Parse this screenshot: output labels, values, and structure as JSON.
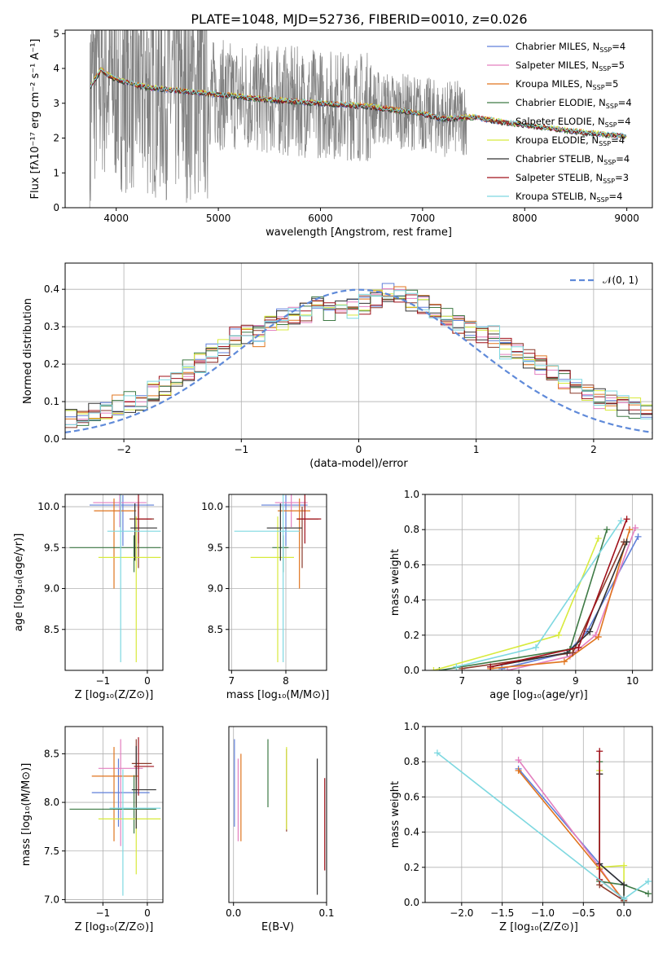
{
  "title": "PLATE=1048, MJD=52736, FIBERID=0010, z=0.026",
  "series": [
    {
      "name": "Chabrier MILES",
      "nssp": "4",
      "color": "#5f7fd9"
    },
    {
      "name": "Salpeter MILES",
      "nssp": "5",
      "color": "#e37fbf"
    },
    {
      "name": "Kroupa MILES",
      "nssp": "5",
      "color": "#e0751f"
    },
    {
      "name": "Chabrier ELODIE",
      "nssp": "4",
      "color": "#3e7a45"
    },
    {
      "name": "Salpeter ELODIE",
      "nssp": "4",
      "color": "#8a3a2a"
    },
    {
      "name": "Kroupa ELODIE",
      "nssp": "4",
      "color": "#d8ea3c"
    },
    {
      "name": "Chabrier STELIB",
      "nssp": "4",
      "color": "#333333"
    },
    {
      "name": "Salpeter STELIB",
      "nssp": "3",
      "color": "#a0101a"
    },
    {
      "name": "Kroupa STELIB",
      "nssp": "4",
      "color": "#7ed8e0"
    }
  ],
  "panel_labels": {
    "spectrum_x": "wavelength [Angstrom, rest frame]",
    "spectrum_y": "Flux [fλ10⁻¹⁷ erg cm⁻² s⁻¹ A⁻¹]",
    "resid_x": "(data-model)/error",
    "resid_y": "Normed distribution",
    "resid_legend": "𝒩(0, 1)",
    "age_y": "age  [log₁₀(age/yr)]",
    "z_x": "Z [log₁₀(Z/Z⊙)]",
    "mass_x": "mass [log₁₀(M/M⊙)]",
    "age_x": "age  [log₁₀(age/yr)]",
    "massweight_y": "mass weight",
    "mass_y": "mass [log₁₀(M/M⊙)]",
    "ebv_x": "E(B-V)"
  },
  "chart_data": [
    {
      "type": "line",
      "panel": "spectrum",
      "title": "PLATE=1048, MJD=52736, FIBERID=0010, z=0.026",
      "xlim": [
        3500,
        9250
      ],
      "ylim": [
        0,
        5.1
      ],
      "xticks": [
        4000,
        5000,
        6000,
        7000,
        8000,
        9000
      ],
      "yticks": [
        0,
        1,
        2,
        3,
        4,
        5
      ],
      "data_color": "#808080",
      "model_continuum": [
        [
          3750,
          3.5
        ],
        [
          3850,
          3.95
        ],
        [
          3950,
          3.75
        ],
        [
          4100,
          3.6
        ],
        [
          4300,
          3.45
        ],
        [
          4500,
          3.4
        ],
        [
          4800,
          3.3
        ],
        [
          5000,
          3.25
        ],
        [
          5500,
          3.1
        ],
        [
          6000,
          3.0
        ],
        [
          6500,
          2.9
        ],
        [
          7000,
          2.7
        ],
        [
          7200,
          2.55
        ],
        [
          7500,
          2.6
        ],
        [
          7800,
          2.45
        ],
        [
          8200,
          2.3
        ],
        [
          8600,
          2.15
        ],
        [
          9000,
          2.05
        ]
      ],
      "data_extent": [
        3740,
        7430
      ]
    },
    {
      "type": "bar",
      "panel": "residual histogram",
      "xlim": [
        -2.5,
        2.5
      ],
      "ylim": [
        0,
        0.47
      ],
      "xticks": [
        -2,
        -1,
        0,
        1,
        2
      ],
      "yticks": [
        0.0,
        0.1,
        0.2,
        0.3,
        0.4
      ],
      "bin_width": 0.1,
      "profile": [
        0.035,
        0.04,
        0.045,
        0.045,
        0.05,
        0.055,
        0.06,
        0.07,
        0.08,
        0.09,
        0.1,
        0.105,
        0.125,
        0.145,
        0.16,
        0.185,
        0.205,
        0.225,
        0.25,
        0.27,
        0.28,
        0.275,
        0.3,
        0.32,
        0.33,
        0.34,
        0.35,
        0.34,
        0.345,
        0.35,
        0.36,
        0.37,
        0.39,
        0.38,
        0.37,
        0.36,
        0.35,
        0.32,
        0.3,
        0.29,
        0.28,
        0.275,
        0.24,
        0.23,
        0.21,
        0.195,
        0.175,
        0.155,
        0.14,
        0.125,
        0.11,
        0.1,
        0.09,
        0.085,
        0.075,
        0.07,
        0.065,
        0.06,
        0.05,
        0.045
      ],
      "gaussian": {
        "mean": 0,
        "sigma": 1
      }
    },
    {
      "type": "scatter",
      "panel": "age vs Z",
      "xlim": [
        -1.85,
        0.35
      ],
      "ylim": [
        8.0,
        10.15
      ],
      "xticks": [
        -1,
        0
      ],
      "yticks": [
        8.5,
        9.0,
        9.5,
        10.0
      ],
      "points": [
        {
          "x": -0.55,
          "y": 10.02,
          "xerr": [
            0.75,
            0.7
          ],
          "yerr": [
            0.5,
            0.12
          ]
        },
        {
          "x": -0.62,
          "y": 10.05,
          "xerr": [
            0.6,
            0.6
          ],
          "yerr": [
            0.3,
            0.1
          ]
        },
        {
          "x": -0.75,
          "y": 9.95,
          "xerr": [
            0.45,
            0.5
          ],
          "yerr": [
            0.95,
            0.15
          ]
        },
        {
          "x": -0.3,
          "y": 9.5,
          "xerr": [
            1.45,
            0.6
          ],
          "yerr": [
            0.3,
            0.15
          ]
        },
        {
          "x": -0.2,
          "y": 9.85,
          "xerr": [
            0.2,
            0.35
          ],
          "yerr": [
            0.6,
            0.15
          ]
        },
        {
          "x": -0.25,
          "y": 9.38,
          "xerr": [
            0.85,
            0.55
          ],
          "yerr": [
            1.28,
            0.5
          ]
        },
        {
          "x": -0.28,
          "y": 9.74,
          "xerr": [
            0.1,
            0.5
          ],
          "yerr": [
            0.4,
            0.3
          ]
        },
        {
          "x": -0.2,
          "y": 9.85,
          "xerr": [
            0.05,
            0.3
          ],
          "yerr": [
            0.3,
            0.3
          ]
        },
        {
          "x": -0.6,
          "y": 9.7,
          "xerr": [
            0.3,
            0.9
          ],
          "yerr": [
            1.6,
            0.5
          ]
        }
      ]
    },
    {
      "type": "scatter",
      "panel": "age vs mass",
      "xlim": [
        6.95,
        8.75
      ],
      "ylim": [
        8.0,
        10.15
      ],
      "xticks": [
        7,
        8
      ],
      "yticks": [
        8.5,
        9.0,
        9.5,
        10.0
      ],
      "points": [
        {
          "x": 8.0,
          "y": 10.02,
          "xerr": [
            0.45,
            0.4
          ],
          "yerr": [
            0.5,
            0.12
          ]
        },
        {
          "x": 8.1,
          "y": 10.05,
          "xerr": [
            0.3,
            0.3
          ],
          "yerr": [
            0.3,
            0.1
          ]
        },
        {
          "x": 8.25,
          "y": 9.95,
          "xerr": [
            0.4,
            0.2
          ],
          "yerr": [
            0.95,
            0.15
          ]
        },
        {
          "x": 7.95,
          "y": 9.5,
          "xerr": [
            0.2,
            0.1
          ],
          "yerr": [
            0.3,
            0.15
          ]
        },
        {
          "x": 8.3,
          "y": 9.85,
          "xerr": [
            0.1,
            0.3
          ],
          "yerr": [
            0.6,
            0.15
          ]
        },
        {
          "x": 7.85,
          "y": 9.38,
          "xerr": [
            0.5,
            0.3
          ],
          "yerr": [
            1.28,
            0.5
          ]
        },
        {
          "x": 7.9,
          "y": 9.74,
          "xerr": [
            0.25,
            0.4
          ],
          "yerr": [
            0.4,
            0.3
          ]
        },
        {
          "x": 8.35,
          "y": 9.85,
          "xerr": [
            0.15,
            0.3
          ],
          "yerr": [
            0.3,
            0.3
          ]
        },
        {
          "x": 7.95,
          "y": 9.7,
          "xerr": [
            0.9,
            0.3
          ],
          "yerr": [
            1.6,
            0.5
          ]
        }
      ]
    },
    {
      "type": "line",
      "panel": "mass weight vs age",
      "xlim": [
        6.35,
        10.35
      ],
      "ylim": [
        0,
        1.0
      ],
      "xticks": [
        7,
        8,
        9,
        10
      ],
      "yticks": [
        0.0,
        0.2,
        0.4,
        0.6,
        0.8,
        1.0
      ],
      "series": [
        {
          "x": [
            7.7,
            8.85,
            9.2,
            10.1
          ],
          "y": [
            0.01,
            0.1,
            0.22,
            0.76
          ]
        },
        {
          "x": [
            7.8,
            8.9,
            9.35,
            10.05
          ],
          "y": [
            0.0,
            0.08,
            0.2,
            0.81
          ]
        },
        {
          "x": [
            7.5,
            8.8,
            9.4,
            9.95
          ],
          "y": [
            0.01,
            0.05,
            0.19,
            0.8
          ]
        },
        {
          "x": [
            6.6,
            8.9,
            9.55
          ],
          "y": [
            0.0,
            0.12,
            0.8
          ]
        },
        {
          "x": [
            7.0,
            8.95,
            9.85
          ],
          "y": [
            0.01,
            0.1,
            0.73
          ]
        },
        {
          "x": [
            6.5,
            8.7,
            9.4
          ],
          "y": [
            0.0,
            0.2,
            0.75
          ]
        },
        {
          "x": [
            7.5,
            8.85,
            9.25,
            9.9
          ],
          "y": [
            0.02,
            0.1,
            0.22,
            0.73
          ]
        },
        {
          "x": [
            7.5,
            9.05,
            9.9
          ],
          "y": [
            0.02,
            0.13,
            0.86
          ]
        },
        {
          "x": [
            6.9,
            8.3,
            9.8
          ],
          "y": [
            0.02,
            0.13,
            0.85
          ]
        }
      ]
    },
    {
      "type": "scatter",
      "panel": "mass vs Z",
      "xlim": [
        -1.85,
        0.35
      ],
      "ylim": [
        6.97,
        8.78
      ],
      "xticks": [
        -1,
        0
      ],
      "yticks": [
        7.0,
        7.5,
        8.0,
        8.5
      ],
      "points": [
        {
          "x": -0.65,
          "y": 8.1,
          "xerr": [
            0.6,
            0.7
          ],
          "yerr": [
            0.35,
            0.35
          ]
        },
        {
          "x": -0.6,
          "y": 8.35,
          "xerr": [
            0.5,
            0.5
          ],
          "yerr": [
            0.8,
            0.3
          ]
        },
        {
          "x": -0.75,
          "y": 8.27,
          "xerr": [
            0.5,
            0.55
          ],
          "yerr": [
            0.67,
            0.3
          ]
        },
        {
          "x": -0.3,
          "y": 7.93,
          "xerr": [
            1.45,
            0.5
          ],
          "yerr": [
            0.25,
            0.35
          ]
        },
        {
          "x": -0.25,
          "y": 8.4,
          "xerr": [
            0.1,
            0.35
          ],
          "yerr": [
            0.3,
            0.25
          ]
        },
        {
          "x": -0.25,
          "y": 7.83,
          "xerr": [
            0.85,
            0.55
          ],
          "yerr": [
            0.57,
            0.4
          ]
        },
        {
          "x": -0.25,
          "y": 8.13,
          "xerr": [
            0.1,
            0.45
          ],
          "yerr": [
            0.4,
            0.45
          ]
        },
        {
          "x": -0.2,
          "y": 8.37,
          "xerr": [
            0.1,
            0.35
          ],
          "yerr": [
            0.3,
            0.3
          ]
        },
        {
          "x": -0.55,
          "y": 7.94,
          "xerr": [
            0.3,
            0.85
          ],
          "yerr": [
            0.9,
            0.4
          ]
        }
      ]
    },
    {
      "type": "scatter",
      "panel": "mass vs E(B-V)",
      "xlim": [
        -0.005,
        0.1
      ],
      "ylim": [
        6.97,
        8.78
      ],
      "xticks": [
        0.0,
        0.1
      ],
      "points": [
        {
          "x": 0.001,
          "y": 8.2,
          "yerr": [
            0.45,
            0.45
          ]
        },
        {
          "x": 0.005,
          "y": 8.1,
          "yerr": [
            0.5,
            0.35
          ]
        },
        {
          "x": 0.008,
          "y": 8.0,
          "yerr": [
            0.4,
            0.5
          ]
        },
        {
          "x": 0.037,
          "y": 8.3,
          "yerr": [
            0.35,
            0.35
          ]
        },
        {
          "x": 0.057,
          "y": 8.15,
          "yerr": [
            0.45,
            0.4
          ]
        },
        {
          "x": 0.057,
          "y": 8.12,
          "yerr": [
            0.4,
            0.45
          ]
        },
        {
          "x": 0.09,
          "y": 7.75,
          "yerr": [
            0.7,
            0.7
          ]
        },
        {
          "x": 0.098,
          "y": 7.75,
          "yerr": [
            0.45,
            0.5
          ]
        }
      ]
    },
    {
      "type": "line",
      "panel": "mass weight vs Z",
      "xlim": [
        -2.45,
        0.35
      ],
      "ylim": [
        0,
        1.0
      ],
      "xticks": [
        -2.0,
        -1.5,
        -1.0,
        -0.5,
        0.0
      ],
      "yticks": [
        0.0,
        0.2,
        0.4,
        0.6,
        0.8,
        1.0
      ],
      "series": [
        {
          "x": [
            -1.3,
            -0.3,
            0.0,
            0.0
          ],
          "y": [
            0.76,
            0.22,
            0.1,
            0.01
          ]
        },
        {
          "x": [
            -1.3,
            -0.3,
            0.0
          ],
          "y": [
            0.81,
            0.2,
            0.0
          ]
        },
        {
          "x": [
            -1.3,
            -0.3,
            0.0
          ],
          "y": [
            0.75,
            0.19,
            0.01
          ]
        },
        {
          "x": [
            -0.3,
            -0.3,
            0.0,
            0.3
          ],
          "y": [
            0.8,
            0.12,
            0.1,
            0.05
          ]
        },
        {
          "x": [
            -0.3,
            -0.3,
            0.0
          ],
          "y": [
            0.73,
            0.1,
            0.01
          ]
        },
        {
          "x": [
            -0.3,
            -0.3,
            0.0,
            0.0
          ],
          "y": [
            0.75,
            0.2,
            0.21,
            0.0
          ]
        },
        {
          "x": [
            -0.3,
            -0.3,
            0.0,
            0.0
          ],
          "y": [
            0.73,
            0.22,
            0.1,
            0.02
          ]
        },
        {
          "x": [
            -0.3,
            -0.3,
            0.0
          ],
          "y": [
            0.86,
            0.13,
            0.02
          ]
        },
        {
          "x": [
            -2.3,
            0.0,
            0.3
          ],
          "y": [
            0.85,
            0.02,
            0.12
          ]
        }
      ]
    }
  ]
}
